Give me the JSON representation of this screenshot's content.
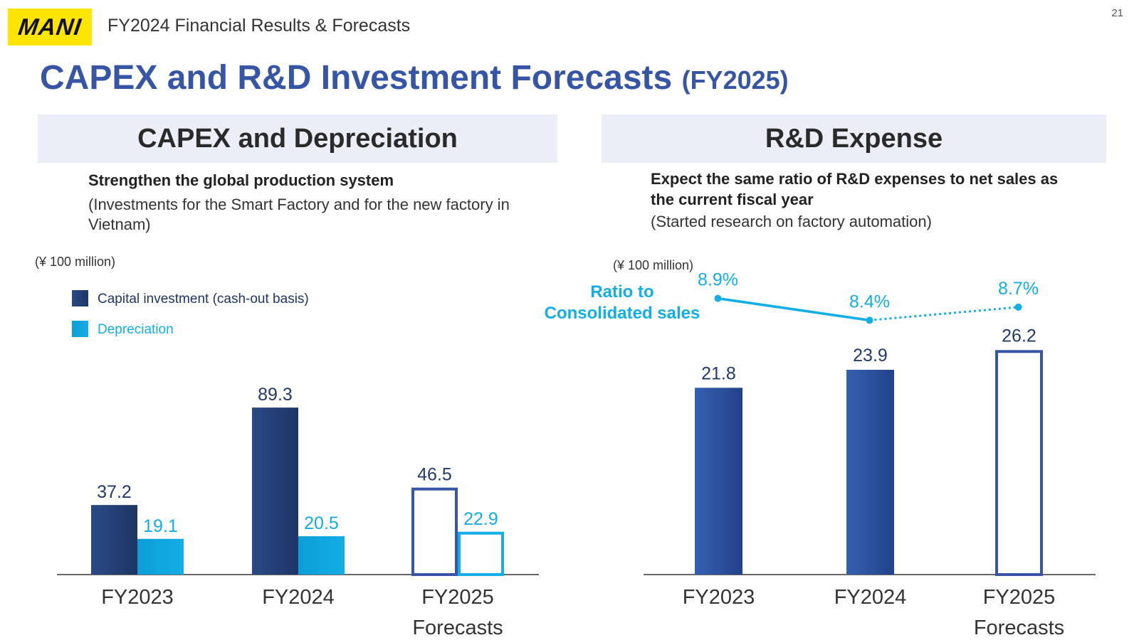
{
  "header": {
    "logo_text": "MANI",
    "subtitle": "FY2024 Financial Results & Forecasts",
    "page_number": "21"
  },
  "title": {
    "main": "CAPEX and R&D Investment Forecasts",
    "suffix": "(FY2025)"
  },
  "left_panel": {
    "heading": "CAPEX and Depreciation",
    "bold_line": "Strengthen the global production system",
    "note_line1": "(Investments for the Smart Factory and for the new factory in",
    "note_line2": "Vietnam)"
  },
  "right_panel": {
    "heading": "R&D Expense",
    "bold_line1": "Expect the same ratio of R&D expenses to net sales as",
    "bold_line2": "the current fiscal year",
    "note_line": "(Started research on factory automation)"
  },
  "colors": {
    "capex": "#1E3565",
    "depreciation": "#12AEE6",
    "rd": "#2E54A2",
    "forecast_outline": "#3656A5",
    "ratio_line": "#12AEE6"
  },
  "chart_data": [
    {
      "type": "bar",
      "unit_label": "(¥ 100 million)",
      "categories": [
        [
          "FY2023"
        ],
        [
          "FY2024"
        ],
        [
          "FY2025",
          "Forecasts"
        ]
      ],
      "forecast_index": 2,
      "series": [
        {
          "name": "Capital investment (cash-out basis)",
          "values": [
            37.2,
            89.3,
            46.5
          ]
        },
        {
          "name": "Depreciation",
          "values": [
            19.1,
            20.5,
            22.9
          ]
        }
      ],
      "ylim": [
        0,
        100
      ]
    },
    {
      "type": "bar",
      "unit_label": "(¥ 100 million)",
      "categories": [
        [
          "FY2023"
        ],
        [
          "FY2024"
        ],
        [
          "FY2025",
          "Forecasts"
        ]
      ],
      "forecast_index": 2,
      "series": [
        {
          "name": "R&D expense",
          "values": [
            21.8,
            23.9,
            26.2
          ]
        }
      ],
      "ratio_line": {
        "label_line1": "Ratio to",
        "label_line2": "Consolidated sales",
        "values": [
          "8.9%",
          "8.4%",
          "8.7%"
        ],
        "numeric": [
          8.9,
          8.4,
          8.7
        ]
      },
      "ylim": [
        0,
        29
      ]
    }
  ]
}
